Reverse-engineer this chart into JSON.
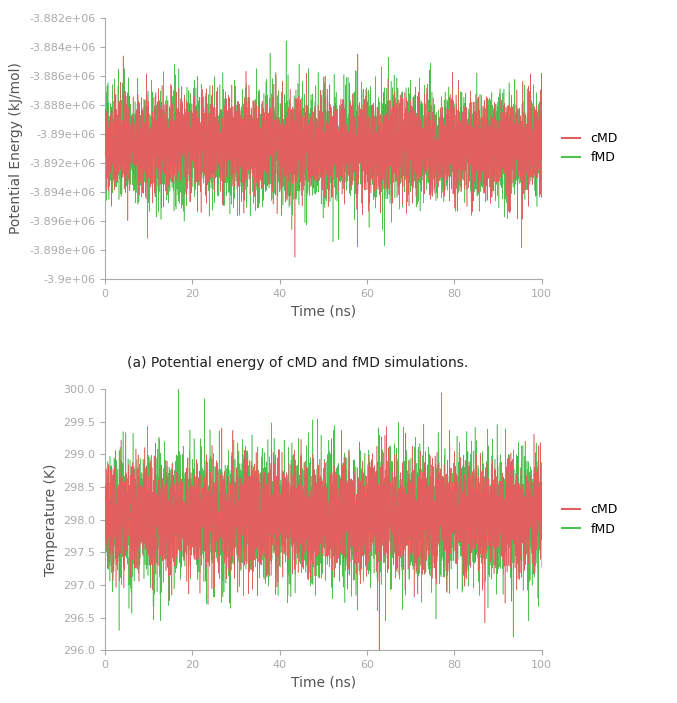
{
  "fig_width": 6.77,
  "fig_height": 7.03,
  "dpi": 100,
  "bg_color": "#ffffff",
  "subplot_a": {
    "xlabel": "Time (ns)",
    "ylabel": "Potential Energy (kJ/mol)",
    "caption": "(a) Potential energy of cMD and fMD simulations.",
    "xlim": [
      0,
      100
    ],
    "ylim": [
      -3900000.0,
      -3882000.0
    ],
    "yticks": [
      -3882000.0,
      -3884000.0,
      -3886000.0,
      -3888000.0,
      -3890000.0,
      -3892000.0,
      -3894000.0,
      -3896000.0,
      -3898000.0,
      -3900000.0
    ],
    "yticklabels": [
      "-3.882e+06",
      "-3.884e+06",
      "-3.886e+06",
      "-3.888e+06",
      "-3.89e+06",
      "-3.892e+06",
      "-3.894e+06",
      "-3.896e+06",
      "-3.898e+06",
      "-3.9e+06"
    ],
    "xticks": [
      0,
      20,
      40,
      60,
      80,
      100
    ],
    "cmd_color": "#e06060",
    "fmd_color": "#50c050",
    "cmd_mean": -3890800.0,
    "cmd_std": 1600,
    "fmd_mean": -3890800.0,
    "fmd_std": 1800,
    "n_points": 5000,
    "linewidth": 0.4,
    "alpha": 1.0
  },
  "subplot_b": {
    "xlabel": "Time (ns)",
    "ylabel": "Temperature (K)",
    "xlim": [
      0,
      100
    ],
    "ylim": [
      296,
      300
    ],
    "yticks": [
      296,
      296.5,
      297,
      297.5,
      298,
      298.5,
      299,
      299.5,
      300
    ],
    "xticks": [
      0,
      20,
      40,
      60,
      80,
      100
    ],
    "cmd_color": "#e06060",
    "fmd_color": "#50c050",
    "cmd_mean": 298.05,
    "cmd_std": 0.4,
    "fmd_mean": 298.05,
    "fmd_std": 0.48,
    "n_points": 5000,
    "linewidth": 0.4,
    "alpha": 1.0
  },
  "legend_cmd_label": "cMD",
  "legend_fmd_label": "fMD",
  "caption_fontsize": 10,
  "axis_label_fontsize": 10,
  "tick_fontsize": 8,
  "legend_fontsize": 9,
  "tick_color": "#aaaaaa",
  "spine_color": "#aaaaaa",
  "label_color": "#555555"
}
